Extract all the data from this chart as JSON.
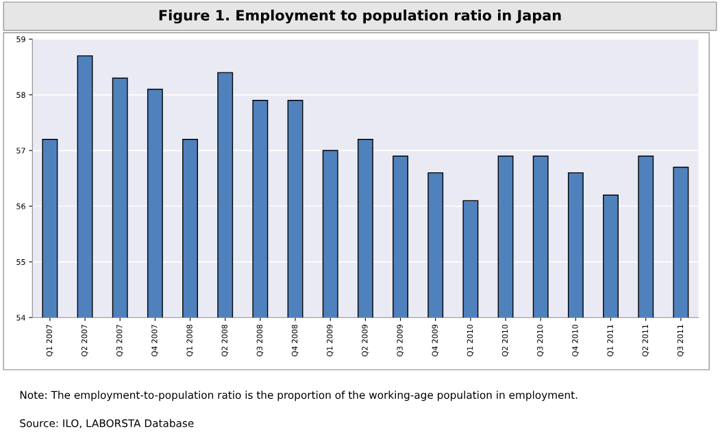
{
  "chart_data": {
    "type": "bar",
    "title": "Figure 1. Employment to population ratio in Japan",
    "categories": [
      "Q1 2007",
      "Q2 2007",
      "Q3 2007",
      "Q4 2007",
      "Q1 2008",
      "Q2 2008",
      "Q3 2008",
      "Q4 2008",
      "Q1 2009",
      "Q2 2009",
      "Q3 2009",
      "Q4 2009",
      "Q1 2010",
      "Q2 2010",
      "Q3 2010",
      "Q4 2010",
      "Q1 2011",
      "Q2 2011",
      "Q3 2011"
    ],
    "values": [
      57.2,
      58.7,
      58.3,
      58.1,
      57.2,
      58.4,
      57.9,
      57.9,
      57.0,
      57.2,
      56.9,
      56.6,
      56.1,
      56.9,
      56.9,
      56.6,
      56.2,
      56.9,
      56.7
    ],
    "color": "#4f81bd",
    "ylim": [
      54,
      59
    ],
    "yticks": [
      54,
      55,
      56,
      57,
      58,
      59
    ],
    "grid": "y",
    "annotations": [
      "Note: The employment-to-population ratio is the proportion of the working-age population in employment.",
      "Source: ILO, LABORSTA Database"
    ]
  }
}
